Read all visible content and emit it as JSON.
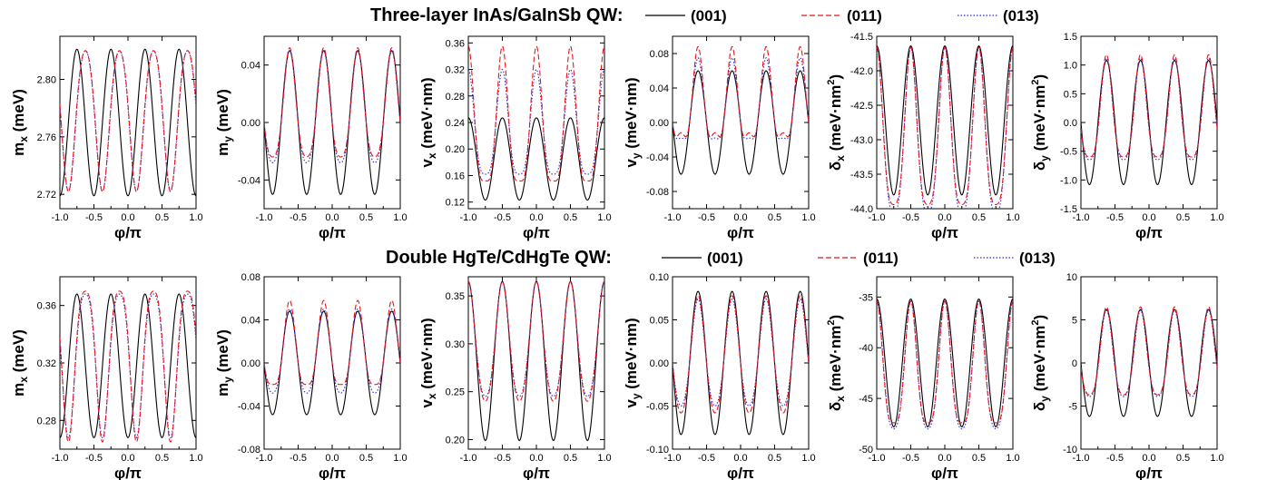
{
  "row_titles": [
    "Three-layer InAs/GaInSb QW:",
    "Double HgTe/CdHgTe QW:"
  ],
  "legend": {
    "entries": [
      "(001)",
      "(011)",
      "(013)"
    ],
    "colors": [
      "#000000",
      "#e8141c",
      "#2a2ae0"
    ],
    "styles": [
      "solid",
      "dashed",
      "dotted"
    ]
  },
  "x_label": "φ/π",
  "x_ticks": [
    "-1.0",
    "-0.5",
    "0.0",
    "0.5",
    "1.0"
  ],
  "x_range": [
    -1.0,
    1.0
  ],
  "chart_data": [
    {
      "type": "line",
      "row": 0,
      "ylabel_main": "m",
      "ylabel_sub": "x",
      "ylabel_unit": " (meV)",
      "ylabel_sup": "",
      "ylim": [
        2.71,
        2.83
      ],
      "yticks": [
        "2.72",
        "2.76",
        "2.80"
      ],
      "ytick_values": [
        2.72,
        2.76,
        2.8
      ],
      "series": [
        {
          "name": "(001)",
          "curve": {
            "kind": "const_amp",
            "c": 2.77,
            "a": -0.051,
            "n": 4,
            "p": 0
          }
        },
        {
          "name": "(011)",
          "curve": {
            "kind": "deep_shallow",
            "c": 2.77,
            "peak": 2.82,
            "deep": 2.722,
            "shallow": 2.768,
            "n": 4,
            "p": 0.125
          }
        },
        {
          "name": "(013)",
          "curve": {
            "kind": "deep_shallow",
            "c": 2.77,
            "peak": 2.82,
            "deep": 2.722,
            "shallow": 2.76,
            "n": 4,
            "p": 0.125
          }
        }
      ]
    },
    {
      "type": "line",
      "row": 0,
      "ylabel_main": "m",
      "ylabel_sub": "y",
      "ylabel_unit": " (meV)",
      "ylabel_sup": "",
      "ylim": [
        -0.06,
        0.06
      ],
      "yticks": [
        "-0.04",
        "0.00",
        "0.04"
      ],
      "ytick_values": [
        -0.04,
        0.0,
        0.04
      ],
      "series": [
        {
          "name": "(001)",
          "curve": {
            "kind": "const_amp",
            "c": 0,
            "a": 0.05,
            "n": 4,
            "p": -0.125
          }
        },
        {
          "name": "(011)",
          "curve": {
            "kind": "alt_peaks",
            "c": 0,
            "a1": 0.052,
            "a2": 0.024,
            "n": 4,
            "p": -0.125
          }
        },
        {
          "name": "(013)",
          "curve": {
            "kind": "alt_peaks",
            "c": 0,
            "a1": 0.05,
            "a2": 0.028,
            "n": 4,
            "p": -0.125
          }
        }
      ]
    },
    {
      "type": "line",
      "row": 0,
      "ylabel_main": "v",
      "ylabel_sub": "x",
      "ylabel_unit": " (meV·nm)",
      "ylabel_sup": "",
      "ylim": [
        0.11,
        0.37
      ],
      "yticks": [
        "0.12",
        "0.16",
        "0.20",
        "0.24",
        "0.28",
        "0.32",
        "0.36"
      ],
      "ytick_values": [
        0.12,
        0.16,
        0.2,
        0.24,
        0.28,
        0.32,
        0.36
      ],
      "series": [
        {
          "name": "(001)",
          "curve": {
            "kind": "const_amp",
            "c": 0.185,
            "a": 0.062,
            "n": 4,
            "p": 0
          }
        },
        {
          "name": "(011)",
          "curve": {
            "kind": "alt_peaks",
            "c": 0.2,
            "a1": 0.155,
            "a2": 0.048,
            "n": 4,
            "p": 0.5
          }
        },
        {
          "name": "(013)",
          "curve": {
            "kind": "alt_peaks",
            "c": 0.205,
            "a1": 0.115,
            "a2": 0.043,
            "n": 4,
            "p": 0.5
          }
        }
      ]
    },
    {
      "type": "line",
      "row": 0,
      "ylabel_main": "v",
      "ylabel_sub": "y",
      "ylabel_unit": " (meV·nm)",
      "ylabel_sup": "",
      "ylim": [
        -0.1,
        0.1
      ],
      "yticks": [
        "-0.08",
        "-0.04",
        "0.00",
        "0.04",
        "0.08"
      ],
      "ytick_values": [
        -0.08,
        -0.04,
        0.0,
        0.04,
        0.08
      ],
      "series": [
        {
          "name": "(001)",
          "curve": {
            "kind": "const_amp",
            "c": 0,
            "a": 0.06,
            "n": 4,
            "p": 0.375
          }
        },
        {
          "name": "(011)",
          "curve": {
            "kind": "alt_peaks",
            "c": 0,
            "a1": 0.088,
            "a2": 0.012,
            "n": 4,
            "p": 0.375
          }
        },
        {
          "name": "(013)",
          "curve": {
            "kind": "alt_peaks",
            "c": 0,
            "a1": 0.075,
            "a2": 0.018,
            "n": 4,
            "p": 0.375
          }
        }
      ]
    },
    {
      "type": "line",
      "row": 0,
      "ylabel_main": "δ",
      "ylabel_sub": "x",
      "ylabel_unit": " (meV·nm",
      "ylabel_sup": "2",
      "ylim": [
        -44.0,
        -41.5
      ],
      "yticks": [
        "-44.0",
        "-43.5",
        "-43.0",
        "-42.5",
        "-42.0",
        "-41.5"
      ],
      "ytick_values": [
        -44.0,
        -43.5,
        -43.0,
        -42.5,
        -42.0,
        -41.5
      ],
      "series": [
        {
          "name": "(001)",
          "curve": {
            "kind": "const_amp",
            "c": -42.72,
            "a": 1.08,
            "n": 4,
            "p": 0
          }
        },
        {
          "name": "(011)",
          "curve": {
            "kind": "alt_peaks",
            "c": -43.3,
            "a1": 1.64,
            "a2": 0.64,
            "n": 4,
            "p": 0
          }
        },
        {
          "name": "(013)",
          "curve": {
            "kind": "alt_peaks",
            "c": -43.3,
            "a1": 1.64,
            "a2": 0.78,
            "n": 4,
            "p": 0
          }
        }
      ]
    },
    {
      "type": "line",
      "row": 0,
      "ylabel_main": "δ",
      "ylabel_sub": "y",
      "ylabel_unit": " (meV·nm",
      "ylabel_sup": "2",
      "ylim": [
        -1.5,
        1.5
      ],
      "yticks": [
        "-1.5",
        "-1.0",
        "-0.5",
        "0.0",
        "0.5",
        "1.0",
        "1.5"
      ],
      "ytick_values": [
        -1.5,
        -1.0,
        -0.5,
        0.0,
        0.5,
        1.0,
        1.5
      ],
      "series": [
        {
          "name": "(001)",
          "curve": {
            "kind": "const_amp",
            "c": 0,
            "a": 1.08,
            "n": 4,
            "p": -0.125
          }
        },
        {
          "name": "(011)",
          "curve": {
            "kind": "alt_peaks",
            "c": -0.1,
            "a1": 1.28,
            "a2": 0.5,
            "n": 4,
            "p": -0.125
          }
        },
        {
          "name": "(013)",
          "curve": {
            "kind": "alt_peaks",
            "c": -0.1,
            "a1": 1.22,
            "a2": 0.55,
            "n": 4,
            "p": -0.125
          }
        }
      ]
    },
    {
      "type": "line",
      "row": 1,
      "ylabel_main": "m",
      "ylabel_sub": "x",
      "ylabel_unit": " (meV)",
      "ylabel_sup": "",
      "ylim": [
        0.26,
        0.38
      ],
      "yticks": [
        "0.28",
        "0.32",
        "0.36"
      ],
      "ytick_values": [
        0.28,
        0.32,
        0.36
      ],
      "series": [
        {
          "name": "(001)",
          "curve": {
            "kind": "const_amp",
            "c": 0.318,
            "a": -0.05,
            "n": 4,
            "p": 0
          }
        },
        {
          "name": "(011)",
          "curve": {
            "kind": "deep_shallow",
            "c": 0.318,
            "peak": 0.37,
            "deep": 0.265,
            "shallow": 0.345,
            "n": 4,
            "p": 0.125
          }
        },
        {
          "name": "(013)",
          "curve": {
            "kind": "deep_shallow",
            "c": 0.318,
            "peak": 0.368,
            "deep": 0.268,
            "shallow": 0.335,
            "n": 4,
            "p": 0.125
          }
        }
      ]
    },
    {
      "type": "line",
      "row": 1,
      "ylabel_main": "m",
      "ylabel_sub": "y",
      "ylabel_unit": " (meV)",
      "ylabel_sup": "",
      "ylim": [
        -0.08,
        0.08
      ],
      "yticks": [
        "-0.08",
        "-0.04",
        "0.00",
        "0.04",
        "0.08"
      ],
      "ytick_values": [
        -0.08,
        -0.04,
        0.0,
        0.04,
        0.08
      ],
      "series": [
        {
          "name": "(001)",
          "curve": {
            "kind": "const_amp",
            "c": 0,
            "a": 0.048,
            "n": 4,
            "p": -0.125
          }
        },
        {
          "name": "(011)",
          "curve": {
            "kind": "alt_peaks",
            "c": 0,
            "a1": 0.058,
            "a2": 0.02,
            "n": 4,
            "p": -0.125
          }
        },
        {
          "name": "(013)",
          "curve": {
            "kind": "alt_peaks",
            "c": 0,
            "a1": 0.05,
            "a2": 0.028,
            "n": 4,
            "p": -0.125
          }
        }
      ]
    },
    {
      "type": "line",
      "row": 1,
      "ylabel_main": "v",
      "ylabel_sub": "x",
      "ylabel_unit": " (meV·nm)",
      "ylabel_sup": "",
      "ylim": [
        0.19,
        0.37
      ],
      "yticks": [
        "0.20",
        "0.25",
        "0.30",
        "0.35"
      ],
      "ytick_values": [
        0.2,
        0.25,
        0.3,
        0.35
      ],
      "series": [
        {
          "name": "(001)",
          "curve": {
            "kind": "const_amp",
            "c": 0.282,
            "a": 0.083,
            "n": 4,
            "p": 0
          }
        },
        {
          "name": "(011)",
          "curve": {
            "kind": "alt_peaks",
            "c": 0.29,
            "a1": 0.075,
            "a2": 0.05,
            "n": 4,
            "p": 0
          }
        },
        {
          "name": "(013)",
          "curve": {
            "kind": "alt_peaks",
            "c": 0.29,
            "a1": 0.075,
            "a2": 0.045,
            "n": 4,
            "p": 0
          }
        }
      ]
    },
    {
      "type": "line",
      "row": 1,
      "ylabel_main": "v",
      "ylabel_sub": "y",
      "ylabel_unit": " (meV·nm)",
      "ylabel_sup": "",
      "ylim": [
        -0.1,
        0.1
      ],
      "yticks": [
        "-0.10",
        "-0.05",
        "0.00",
        "0.05",
        "0.10"
      ],
      "ytick_values": [
        -0.1,
        -0.05,
        0.0,
        0.05,
        0.1
      ],
      "series": [
        {
          "name": "(001)",
          "curve": {
            "kind": "const_amp",
            "c": 0,
            "a": 0.083,
            "n": 4,
            "p": 0.375
          }
        },
        {
          "name": "(011)",
          "curve": {
            "kind": "alt_peaks",
            "c": 0,
            "a1": 0.078,
            "a2": 0.058,
            "n": 4,
            "p": 0.375
          }
        },
        {
          "name": "(013)",
          "curve": {
            "kind": "alt_peaks",
            "c": 0,
            "a1": 0.074,
            "a2": 0.05,
            "n": 4,
            "p": 0.375
          }
        }
      ]
    },
    {
      "type": "line",
      "row": 1,
      "ylabel_main": "δ",
      "ylabel_sub": "x",
      "ylabel_unit": " (meV·nm",
      "ylabel_sup": "2",
      "ylim": [
        -50,
        -33
      ],
      "yticks": [
        "-50",
        "-45",
        "-40",
        "-35"
      ],
      "ytick_values": [
        -50,
        -45,
        -40,
        -35
      ],
      "series": [
        {
          "name": "(001)",
          "curve": {
            "kind": "const_amp",
            "c": -41.5,
            "a": 6.3,
            "n": 4,
            "p": 0
          }
        },
        {
          "name": "(011)",
          "curve": {
            "kind": "alt_peaks",
            "c": -44.2,
            "a1": 8.8,
            "a2": 3.2,
            "n": 4,
            "p": 0
          }
        },
        {
          "name": "(013)",
          "curve": {
            "kind": "alt_peaks",
            "c": -44.0,
            "a1": 8.6,
            "a2": 4.0,
            "n": 4,
            "p": 0
          }
        }
      ]
    },
    {
      "type": "line",
      "row": 1,
      "ylabel_main": "δ",
      "ylabel_sub": "y",
      "ylabel_unit": " (meV·nm",
      "ylabel_sup": "2",
      "ylim": [
        -10,
        10
      ],
      "yticks": [
        "-10",
        "-5",
        "0",
        "5",
        "10"
      ],
      "ytick_values": [
        -10,
        -5,
        0,
        5,
        10
      ],
      "series": [
        {
          "name": "(001)",
          "curve": {
            "kind": "const_amp",
            "c": 0,
            "a": 6.2,
            "n": 4,
            "p": -0.125
          }
        },
        {
          "name": "(011)",
          "curve": {
            "kind": "alt_peaks",
            "c": -0.5,
            "a1": 7.0,
            "a2": 3.2,
            "n": 4,
            "p": -0.125
          }
        },
        {
          "name": "(013)",
          "curve": {
            "kind": "alt_peaks",
            "c": -0.5,
            "a1": 6.6,
            "a2": 3.4,
            "n": 4,
            "p": -0.125
          }
        }
      ]
    }
  ]
}
